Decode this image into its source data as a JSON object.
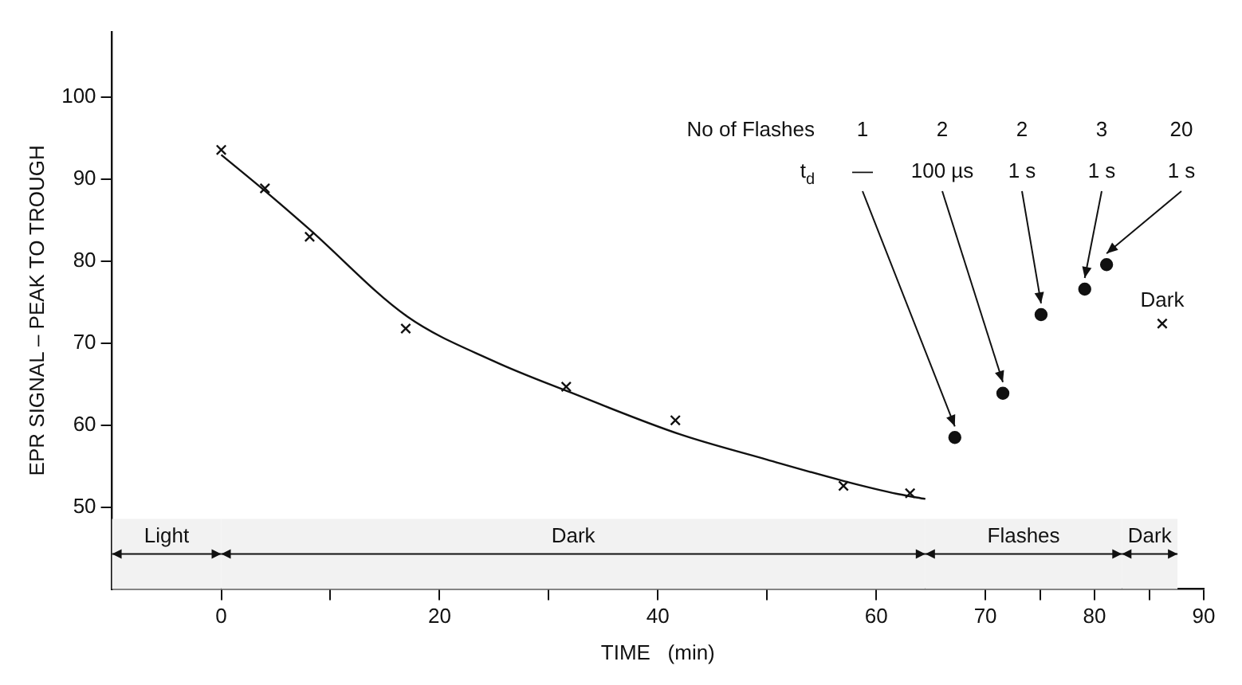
{
  "chart_data": {
    "type": "scatter",
    "xlabel": "TIME   (min)",
    "ylabel": "EPR SIGNAL – PEAK TO TROUGH",
    "xlim": [
      -10,
      90
    ],
    "ylim": [
      40,
      108
    ],
    "xticks": [
      0,
      {
        "value": 10,
        "label": null
      },
      20,
      {
        "value": 30,
        "label": null
      },
      40,
      {
        "value": 50,
        "label": null
      },
      60,
      70,
      {
        "value": 75,
        "label": null
      },
      80,
      {
        "value": 85,
        "label": null
      },
      90
    ],
    "yticks": [
      50,
      60,
      70,
      80,
      90,
      100
    ],
    "grid": false,
    "legend": false,
    "series": [
      {
        "marker": "cross",
        "color": "#111111",
        "x": [
          0,
          4,
          8.1,
          16.9,
          31.6,
          41.6,
          57,
          63.1
        ],
        "values": [
          93.6,
          88.9,
          83,
          71.8,
          64.7,
          60.6,
          52.6,
          51.7
        ]
      },
      {
        "type": "line",
        "marker": "none",
        "line_style": "solid",
        "color": "#111111",
        "x": [
          0,
          4,
          8,
          17,
          25,
          32,
          42,
          50,
          57,
          62,
          64.5
        ],
        "values": [
          93,
          88.6,
          84,
          73.3,
          67.8,
          64,
          58.9,
          55.8,
          53.2,
          51.6,
          51
        ]
      },
      {
        "marker": "circle",
        "color": "#111111",
        "x": [
          67.2,
          71.6,
          75.1,
          79.1,
          81.1
        ],
        "values": [
          58.5,
          63.9,
          73.5,
          76.6,
          79.6
        ]
      },
      {
        "marker": "cross",
        "color": "#111111",
        "x": [
          86.2
        ],
        "values": [
          72.4
        ]
      }
    ],
    "bands": [
      {
        "axis": "x",
        "from": -10,
        "to": 0,
        "label": "Light",
        "color": "#f2f2f2"
      },
      {
        "axis": "x",
        "from": 0,
        "to": 64.5,
        "label": "Dark",
        "color": "#f2f2f2"
      },
      {
        "axis": "x",
        "from": 64.5,
        "to": 82.5,
        "label": "Flashes",
        "color": "#f2f2f2"
      },
      {
        "axis": "x",
        "from": 82.5,
        "to": 87.6,
        "label": "Dark",
        "color": "#f2f2f2"
      }
    ],
    "annotations": [
      "No of Flashes",
      "1",
      "2",
      "2",
      "3",
      "20",
      "t$_{d}$",
      {
        "text": "—",
        "x": 67.2,
        "y": 58.5
      },
      {
        "text": "100 µs",
        "x": 71.6,
        "y": 63.9
      },
      {
        "text": "1 s",
        "x": 75.1,
        "y": 73.5
      },
      {
        "text": "1 s",
        "x": 79.1,
        "y": 76.6
      },
      {
        "text": "1 s",
        "x": 81.1,
        "y": 79.6
      },
      {
        "text": "Dark",
        "x": 86.2,
        "y": 72.4
      }
    ]
  }
}
